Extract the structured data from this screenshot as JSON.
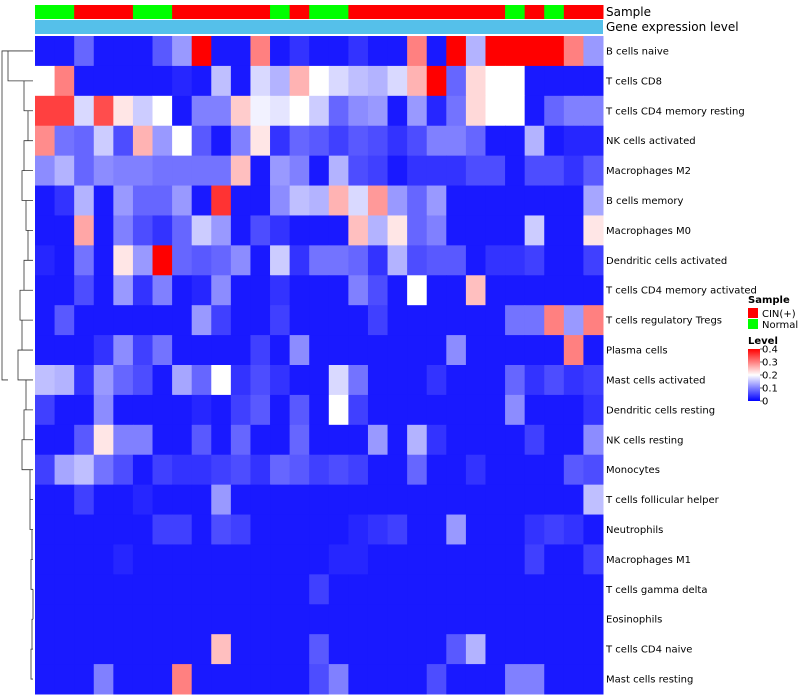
{
  "chart_data": {
    "type": "heatmap",
    "title": "",
    "annotation_tracks": [
      "Sample",
      "Gene expression level"
    ],
    "column_groups": [
      "Normal",
      "Normal",
      "CIN(+)",
      "CIN(+)",
      "CIN(+)",
      "Normal",
      "Normal",
      "CIN(+)",
      "CIN(+)",
      "CIN(+)",
      "CIN(+)",
      "CIN(+)",
      "Normal",
      "CIN(+)",
      "Normal",
      "Normal",
      "CIN(+)",
      "CIN(+)",
      "CIN(+)",
      "CIN(+)",
      "CIN(+)",
      "CIN(+)",
      "CIN(+)",
      "CIN(+)",
      "Normal",
      "CIN(+)",
      "Normal",
      "CIN(+)",
      "CIN(+)"
    ],
    "rows": [
      "B cells naive",
      "T cells CD8",
      "T cells CD4 memory resting",
      "NK cells activated",
      "Macrophages M2",
      "B cells memory",
      "Macrophages M0",
      "Dendritic cells activated",
      "T cells CD4 memory activated",
      "T cells regulatory  Tregs",
      "Plasma cells",
      "Mast cells activated",
      "Dendritic cells resting",
      "NK cells resting",
      "Monocytes",
      "T cells follicular helper",
      "Neutrophils",
      "Macrophages M1",
      "T cells gamma delta",
      "Eosinophils",
      "T cells CD4 naive",
      "Mast cells resting"
    ],
    "values": [
      [
        0.02,
        0.02,
        0.08,
        0.02,
        0.02,
        0.02,
        0.07,
        0.12,
        0.4,
        0.02,
        0.02,
        0.3,
        0.02,
        0.04,
        0.02,
        0.02,
        0.04,
        0.02,
        0.02,
        0.3,
        0.02,
        0.4,
        0.14,
        0.4,
        0.4,
        0.4,
        0.4,
        0.3,
        0.12
      ],
      [
        0.2,
        0.3,
        0.02,
        0.02,
        0.02,
        0.02,
        0.02,
        0.03,
        0.02,
        0.15,
        0.02,
        0.17,
        0.14,
        0.26,
        0.2,
        0.17,
        0.15,
        0.14,
        0.17,
        0.26,
        0.4,
        0.08,
        0.23,
        0.2,
        0.2,
        0.02,
        0.02,
        0.02,
        0.02
      ],
      [
        0.35,
        0.35,
        0.17,
        0.34,
        0.22,
        0.16,
        0.2,
        0.02,
        0.1,
        0.1,
        0.24,
        0.19,
        0.18,
        0.2,
        0.16,
        0.08,
        0.11,
        0.12,
        0.02,
        0.12,
        0.03,
        0.09,
        0.23,
        0.2,
        0.2,
        0.02,
        0.08,
        0.1,
        0.1
      ],
      [
        0.29,
        0.09,
        0.08,
        0.16,
        0.06,
        0.26,
        0.12,
        0.2,
        0.07,
        0.02,
        0.1,
        0.22,
        0.04,
        0.08,
        0.07,
        0.05,
        0.07,
        0.06,
        0.04,
        0.06,
        0.1,
        0.1,
        0.08,
        0.02,
        0.02,
        0.14,
        0.02,
        0.03,
        0.03
      ],
      [
        0.11,
        0.14,
        0.08,
        0.11,
        0.1,
        0.1,
        0.09,
        0.09,
        0.09,
        0.09,
        0.25,
        0.02,
        0.12,
        0.1,
        0.02,
        0.14,
        0.06,
        0.05,
        0.02,
        0.04,
        0.04,
        0.04,
        0.06,
        0.06,
        0.02,
        0.06,
        0.06,
        0.04,
        0.07
      ],
      [
        0.02,
        0.04,
        0.14,
        0.02,
        0.12,
        0.08,
        0.08,
        0.12,
        0.02,
        0.36,
        0.02,
        0.02,
        0.11,
        0.15,
        0.14,
        0.26,
        0.17,
        0.28,
        0.12,
        0.08,
        0.12,
        0.02,
        0.02,
        0.02,
        0.02,
        0.02,
        0.02,
        0.02,
        0.13
      ],
      [
        0.02,
        0.02,
        0.27,
        0.02,
        0.1,
        0.06,
        0.04,
        0.08,
        0.16,
        0.12,
        0.02,
        0.06,
        0.04,
        0.02,
        0.02,
        0.02,
        0.25,
        0.14,
        0.22,
        0.08,
        0.1,
        0.02,
        0.02,
        0.02,
        0.02,
        0.16,
        0.02,
        0.02,
        0.22
      ],
      [
        0.03,
        0.02,
        0.09,
        0.02,
        0.22,
        0.12,
        0.4,
        0.08,
        0.07,
        0.08,
        0.11,
        0.02,
        0.16,
        0.04,
        0.09,
        0.09,
        0.08,
        0.04,
        0.14,
        0.06,
        0.07,
        0.07,
        0.02,
        0.04,
        0.04,
        0.05,
        0.02,
        0.02,
        0.05
      ],
      [
        0.02,
        0.02,
        0.06,
        0.02,
        0.12,
        0.04,
        0.1,
        0.02,
        0.03,
        0.11,
        0.02,
        0.02,
        0.04,
        0.02,
        0.02,
        0.02,
        0.1,
        0.06,
        0.02,
        0.2,
        0.02,
        0.02,
        0.25,
        0.02,
        0.02,
        0.02,
        0.02,
        0.02,
        0.02
      ],
      [
        0.02,
        0.07,
        0.02,
        0.02,
        0.02,
        0.02,
        0.02,
        0.02,
        0.12,
        0.05,
        0.02,
        0.02,
        0.05,
        0.02,
        0.02,
        0.02,
        0.02,
        0.05,
        0.02,
        0.02,
        0.02,
        0.02,
        0.02,
        0.02,
        0.09,
        0.09,
        0.3,
        0.12,
        0.3
      ],
      [
        0.02,
        0.02,
        0.02,
        0.04,
        0.11,
        0.05,
        0.09,
        0.02,
        0.02,
        0.02,
        0.02,
        0.05,
        0.02,
        0.11,
        0.02,
        0.02,
        0.02,
        0.02,
        0.02,
        0.02,
        0.02,
        0.11,
        0.02,
        0.02,
        0.02,
        0.02,
        0.02,
        0.3,
        0.02
      ],
      [
        0.15,
        0.14,
        0.04,
        0.12,
        0.08,
        0.06,
        0.02,
        0.13,
        0.08,
        0.2,
        0.04,
        0.06,
        0.04,
        0.02,
        0.02,
        0.17,
        0.09,
        0.02,
        0.02,
        0.02,
        0.04,
        0.02,
        0.02,
        0.02,
        0.08,
        0.04,
        0.06,
        0.04,
        0.05
      ],
      [
        0.05,
        0.02,
        0.02,
        0.11,
        0.02,
        0.02,
        0.02,
        0.02,
        0.03,
        0.02,
        0.05,
        0.07,
        0.02,
        0.07,
        0.02,
        0.2,
        0.05,
        0.02,
        0.02,
        0.02,
        0.02,
        0.02,
        0.02,
        0.02,
        0.11,
        0.02,
        0.02,
        0.02,
        0.04
      ],
      [
        0.02,
        0.02,
        0.07,
        0.22,
        0.1,
        0.1,
        0.02,
        0.02,
        0.07,
        0.02,
        0.08,
        0.02,
        0.02,
        0.08,
        0.02,
        0.02,
        0.02,
        0.12,
        0.02,
        0.14,
        0.04,
        0.02,
        0.02,
        0.02,
        0.02,
        0.05,
        0.02,
        0.02,
        0.11
      ],
      [
        0.05,
        0.13,
        0.15,
        0.09,
        0.06,
        0.02,
        0.05,
        0.04,
        0.04,
        0.05,
        0.06,
        0.04,
        0.08,
        0.07,
        0.05,
        0.06,
        0.05,
        0.02,
        0.02,
        0.08,
        0.02,
        0.02,
        0.04,
        0.02,
        0.02,
        0.02,
        0.02,
        0.07,
        0.06
      ],
      [
        0.02,
        0.02,
        0.05,
        0.02,
        0.02,
        0.03,
        0.02,
        0.02,
        0.02,
        0.12,
        0.02,
        0.02,
        0.02,
        0.02,
        0.02,
        0.02,
        0.02,
        0.02,
        0.02,
        0.02,
        0.02,
        0.02,
        0.02,
        0.02,
        0.02,
        0.02,
        0.02,
        0.02,
        0.15
      ],
      [
        0.02,
        0.02,
        0.02,
        0.02,
        0.02,
        0.02,
        0.05,
        0.05,
        0.02,
        0.06,
        0.05,
        0.02,
        0.02,
        0.02,
        0.02,
        0.02,
        0.03,
        0.04,
        0.05,
        0.02,
        0.02,
        0.12,
        0.02,
        0.02,
        0.02,
        0.04,
        0.05,
        0.04,
        0.02
      ],
      [
        0.02,
        0.02,
        0.02,
        0.02,
        0.03,
        0.02,
        0.02,
        0.02,
        0.02,
        0.02,
        0.02,
        0.02,
        0.02,
        0.02,
        0.02,
        0.03,
        0.03,
        0.02,
        0.02,
        0.02,
        0.02,
        0.02,
        0.02,
        0.02,
        0.02,
        0.05,
        0.02,
        0.02,
        0.05
      ],
      [
        0.02,
        0.02,
        0.02,
        0.02,
        0.02,
        0.02,
        0.02,
        0.02,
        0.02,
        0.02,
        0.02,
        0.02,
        0.02,
        0.02,
        0.05,
        0.02,
        0.02,
        0.02,
        0.02,
        0.02,
        0.02,
        0.02,
        0.02,
        0.02,
        0.02,
        0.02,
        0.02,
        0.02,
        0.02
      ],
      [
        0.02,
        0.02,
        0.02,
        0.02,
        0.02,
        0.02,
        0.02,
        0.02,
        0.02,
        0.02,
        0.02,
        0.02,
        0.02,
        0.02,
        0.02,
        0.02,
        0.02,
        0.02,
        0.02,
        0.02,
        0.02,
        0.02,
        0.02,
        0.02,
        0.02,
        0.02,
        0.02,
        0.02,
        0.02
      ],
      [
        0.02,
        0.02,
        0.02,
        0.02,
        0.02,
        0.02,
        0.02,
        0.02,
        0.02,
        0.25,
        0.02,
        0.02,
        0.02,
        0.02,
        0.07,
        0.02,
        0.02,
        0.02,
        0.02,
        0.02,
        0.02,
        0.07,
        0.14,
        0.02,
        0.02,
        0.02,
        0.02,
        0.02,
        0.02
      ],
      [
        0.02,
        0.02,
        0.02,
        0.1,
        0.02,
        0.02,
        0.02,
        0.3,
        0.02,
        0.02,
        0.02,
        0.02,
        0.02,
        0.02,
        0.06,
        0.1,
        0.02,
        0.02,
        0.02,
        0.02,
        0.06,
        0.02,
        0.02,
        0.02,
        0.1,
        0.1,
        0.02,
        0.02,
        0.02
      ]
    ],
    "color_scale": {
      "range": [
        0,
        0.4
      ],
      "colors": [
        "#0000ff",
        "#ffffff",
        "#ff0000"
      ]
    },
    "legend": {
      "sample_title": "Sample",
      "sample_entries": [
        {
          "label": "CIN(+)",
          "color": "#ff0000"
        },
        {
          "label": "Normal",
          "color": "#00ff00"
        }
      ],
      "level_title": "Level",
      "level_ticks": [
        "0.4",
        "0.3",
        "0.2",
        "0.1",
        "0"
      ],
      "level_tick_values": [
        0.4,
        0.3,
        0.2,
        0.1,
        0
      ]
    },
    "gene_expression_track_color": "#55c0ea"
  }
}
